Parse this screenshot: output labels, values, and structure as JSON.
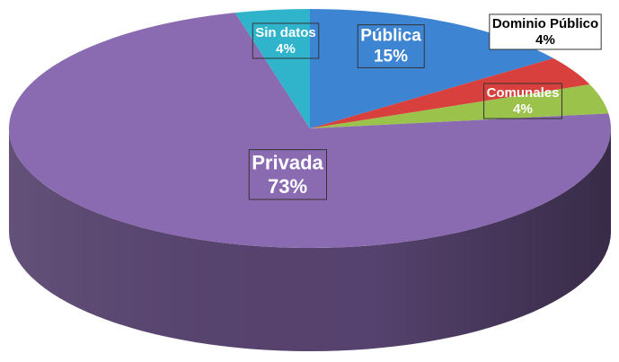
{
  "chart_data": {
    "type": "pie",
    "3d": true,
    "categories": [
      "Pública",
      "Dominio Público",
      "Comunales",
      "Privada",
      "Sin datos"
    ],
    "values": [
      15,
      4,
      4,
      73,
      4
    ],
    "value_labels": [
      "15%",
      "4%",
      "4%",
      "73%",
      "4%"
    ],
    "colors": [
      "#3d85d3",
      "#d8403d",
      "#9bc34c",
      "#8a6bb2",
      "#2fb4cc"
    ],
    "start_angle": 0,
    "direction": "clockwise"
  }
}
